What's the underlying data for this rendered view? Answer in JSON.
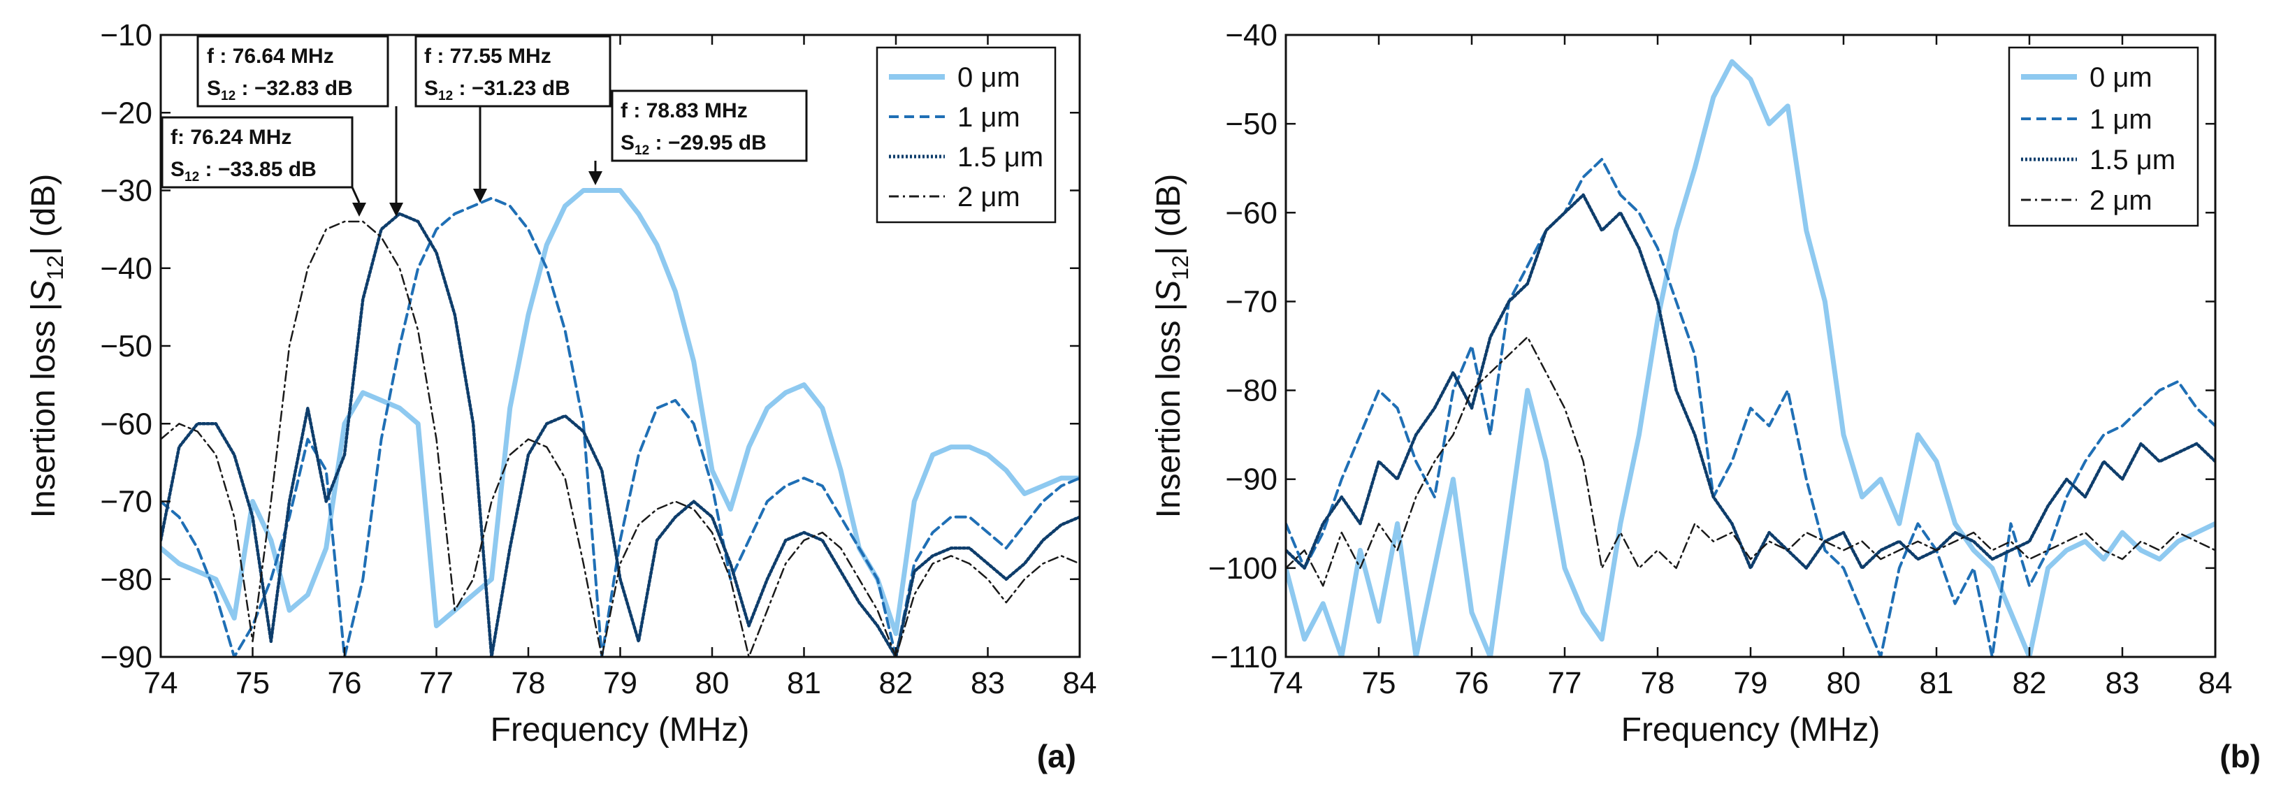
{
  "chart_data": [
    {
      "type": "line",
      "panel_label": "(a)",
      "xlabel": "Frequency (MHz)",
      "ylabel": {
        "prefix": "Insertion loss |",
        "symbol": "S",
        "sub": "12",
        "suffix": "| (dB)"
      },
      "xlim": [
        74,
        84
      ],
      "ylim": [
        -90,
        -10
      ],
      "xticks": [
        74,
        75,
        76,
        77,
        78,
        79,
        80,
        81,
        82,
        83,
        84
      ],
      "xtick_labels": [
        "74",
        "75",
        "76",
        "77",
        "78",
        "79",
        "80",
        "81",
        "82",
        "83",
        "84"
      ],
      "yticks": [
        -90,
        -80,
        -70,
        -60,
        -50,
        -40,
        -30,
        -20,
        -10
      ],
      "ytick_labels": [
        "−90",
        "−80",
        "−70",
        "−60",
        "−50",
        "−40",
        "−30",
        "−20",
        "−10"
      ],
      "legend": [
        "0 μm",
        "1 μm",
        "1.5 μm",
        "2 μm"
      ],
      "series": [
        {
          "name": "0 μm",
          "color": "#8ec9f0",
          "style": "solid-thick",
          "x": [
            74,
            74.2,
            74.4,
            74.6,
            74.8,
            75.0,
            75.2,
            75.4,
            75.6,
            75.8,
            76.0,
            76.2,
            76.4,
            76.6,
            76.8,
            77.0,
            77.2,
            77.4,
            77.6,
            77.8,
            78.0,
            78.2,
            78.4,
            78.6,
            78.8,
            79.0,
            79.2,
            79.4,
            79.6,
            79.8,
            80.0,
            80.2,
            80.4,
            80.6,
            80.8,
            81.0,
            81.2,
            81.4,
            81.6,
            81.8,
            82.0,
            82.2,
            82.4,
            82.6,
            82.8,
            83.0,
            83.2,
            83.4,
            83.6,
            83.8,
            84.0
          ],
          "y": [
            -76,
            -78,
            -79,
            -80,
            -85,
            -70,
            -75,
            -84,
            -82,
            -76,
            -60,
            -56,
            -57,
            -58,
            -60,
            -86,
            -84,
            -82,
            -80,
            -58,
            -46,
            -37,
            -32,
            -30,
            -30,
            -30,
            -33,
            -37,
            -43,
            -52,
            -66,
            -71,
            -63,
            -58,
            -56,
            -55,
            -58,
            -66,
            -76,
            -80,
            -87,
            -70,
            -64,
            -63,
            -63,
            -64,
            -66,
            -69,
            -68,
            -67,
            -67
          ]
        },
        {
          "name": "1 μm",
          "color": "#1f6fb5",
          "style": "dashed",
          "x": [
            74,
            74.2,
            74.4,
            74.6,
            74.8,
            75.0,
            75.2,
            75.4,
            75.6,
            75.8,
            76.0,
            76.2,
            76.4,
            76.6,
            76.8,
            77.0,
            77.2,
            77.4,
            77.6,
            77.8,
            78.0,
            78.2,
            78.4,
            78.6,
            78.8,
            79.0,
            79.2,
            79.4,
            79.6,
            79.8,
            80.0,
            80.2,
            80.4,
            80.6,
            80.8,
            81.0,
            81.2,
            81.4,
            81.6,
            81.8,
            82.0,
            82.2,
            82.4,
            82.6,
            82.8,
            83.0,
            83.2,
            83.4,
            83.6,
            83.8,
            84.0
          ],
          "y": [
            -70,
            -72,
            -76,
            -82,
            -90,
            -86,
            -80,
            -72,
            -62,
            -66,
            -90,
            -80,
            -62,
            -50,
            -40,
            -35,
            -33,
            -32,
            -31,
            -32,
            -35,
            -40,
            -48,
            -60,
            -90,
            -75,
            -64,
            -58,
            -57,
            -60,
            -68,
            -80,
            -75,
            -70,
            -68,
            -67,
            -68,
            -72,
            -76,
            -80,
            -90,
            -78,
            -74,
            -72,
            -72,
            -74,
            -76,
            -73,
            -70,
            -68,
            -67
          ]
        },
        {
          "name": "1.5 μm",
          "color": "#0e3d6b",
          "style": "dotted",
          "x": [
            74,
            74.2,
            74.4,
            74.6,
            74.8,
            75.0,
            75.2,
            75.4,
            75.6,
            75.8,
            76.0,
            76.2,
            76.4,
            76.6,
            76.8,
            77.0,
            77.2,
            77.4,
            77.6,
            77.8,
            78.0,
            78.2,
            78.4,
            78.6,
            78.8,
            79.0,
            79.2,
            79.4,
            79.6,
            79.8,
            80.0,
            80.2,
            80.4,
            80.6,
            80.8,
            81.0,
            81.2,
            81.4,
            81.6,
            81.8,
            82.0,
            82.2,
            82.4,
            82.6,
            82.8,
            83.0,
            83.2,
            83.4,
            83.6,
            83.8,
            84.0
          ],
          "y": [
            -75,
            -63,
            -60,
            -60,
            -64,
            -72,
            -88,
            -70,
            -58,
            -70,
            -64,
            -44,
            -35,
            -33,
            -34,
            -38,
            -46,
            -60,
            -90,
            -76,
            -64,
            -60,
            -59,
            -61,
            -66,
            -80,
            -88,
            -75,
            -72,
            -70,
            -72,
            -78,
            -86,
            -80,
            -75,
            -74,
            -75,
            -79,
            -83,
            -86,
            -90,
            -79,
            -77,
            -76,
            -76,
            -78,
            -80,
            -78,
            -75,
            -73,
            -72
          ]
        },
        {
          "name": "2 μm",
          "color": "#1a1a1a",
          "style": "dashdot",
          "x": [
            74,
            74.2,
            74.4,
            74.6,
            74.8,
            75.0,
            75.2,
            75.4,
            75.6,
            75.8,
            76.0,
            76.2,
            76.4,
            76.6,
            76.8,
            77.0,
            77.2,
            77.4,
            77.6,
            77.8,
            78.0,
            78.2,
            78.4,
            78.6,
            78.8,
            79.0,
            79.2,
            79.4,
            79.6,
            79.8,
            80.0,
            80.2,
            80.4,
            80.6,
            80.8,
            81.0,
            81.2,
            81.4,
            81.6,
            81.8,
            82.0,
            82.2,
            82.4,
            82.6,
            82.8,
            83.0,
            83.2,
            83.4,
            83.6,
            83.8,
            84.0
          ],
          "y": [
            -62,
            -60,
            -61,
            -64,
            -72,
            -88,
            -70,
            -50,
            -40,
            -35,
            -34,
            -34,
            -36,
            -40,
            -48,
            -62,
            -84,
            -80,
            -70,
            -64,
            -62,
            -63,
            -67,
            -78,
            -90,
            -78,
            -73,
            -71,
            -70,
            -71,
            -74,
            -80,
            -90,
            -84,
            -78,
            -75,
            -74,
            -76,
            -80,
            -84,
            -90,
            -82,
            -78,
            -77,
            -78,
            -80,
            -83,
            -80,
            -78,
            -77,
            -78
          ]
        }
      ],
      "annotations": [
        {
          "f_label": "f: 76.24 MHz",
          "s_value": " : −33.85 dB",
          "x": 76.24,
          "y": -33.85
        },
        {
          "f_label": "f : 76.64 MHz",
          "s_value": " : −32.83 dB",
          "x": 76.64,
          "y": -32.83
        },
        {
          "f_label": "f : 77.55 MHz",
          "s_value": " : −31.23 dB",
          "x": 77.55,
          "y": -31.23
        },
        {
          "f_label": "f : 78.83 MHz",
          "s_value": " : −29.95 dB",
          "x": 78.83,
          "y": -29.95
        }
      ]
    },
    {
      "type": "line",
      "panel_label": "(b)",
      "xlabel": "Frequency (MHz)",
      "ylabel": {
        "prefix": "Insertion loss |",
        "symbol": "S",
        "sub": "12",
        "suffix": "| (dB)"
      },
      "xlim": [
        74,
        84
      ],
      "ylim": [
        -110,
        -40
      ],
      "xticks": [
        74,
        75,
        76,
        77,
        78,
        79,
        80,
        81,
        82,
        83,
        84
      ],
      "xtick_labels": [
        "74",
        "75",
        "76",
        "77",
        "78",
        "79",
        "80",
        "81",
        "82",
        "83",
        "84"
      ],
      "yticks": [
        -110,
        -100,
        -90,
        -80,
        -70,
        -60,
        -50,
        -40
      ],
      "ytick_labels": [
        "−110",
        "−100",
        "−90",
        "−80",
        "−70",
        "−60",
        "−50",
        "−40"
      ],
      "legend": [
        "0 μm",
        "1 μm",
        "1.5 μm",
        "2 μm"
      ],
      "series": [
        {
          "name": "0 μm",
          "color": "#8ec9f0",
          "style": "solid-thick",
          "x": [
            74,
            74.2,
            74.4,
            74.6,
            74.8,
            75.0,
            75.2,
            75.4,
            75.6,
            75.8,
            76.0,
            76.2,
            76.4,
            76.6,
            76.8,
            77.0,
            77.2,
            77.4,
            77.6,
            77.8,
            78.0,
            78.2,
            78.4,
            78.6,
            78.8,
            79.0,
            79.2,
            79.4,
            79.6,
            79.8,
            80.0,
            80.2,
            80.4,
            80.6,
            80.8,
            81.0,
            81.2,
            81.4,
            81.6,
            81.8,
            82.0,
            82.2,
            82.4,
            82.6,
            82.8,
            83.0,
            83.2,
            83.4,
            83.6,
            83.8,
            84.0
          ],
          "y": [
            -100,
            -108,
            -104,
            -110,
            -98,
            -106,
            -95,
            -110,
            -100,
            -90,
            -105,
            -110,
            -95,
            -80,
            -88,
            -100,
            -105,
            -108,
            -95,
            -85,
            -72,
            -62,
            -55,
            -47,
            -43,
            -45,
            -50,
            -48,
            -62,
            -70,
            -85,
            -92,
            -90,
            -95,
            -85,
            -88,
            -95,
            -98,
            -100,
            -105,
            -110,
            -100,
            -98,
            -97,
            -99,
            -96,
            -98,
            -99,
            -97,
            -96,
            -95
          ]
        },
        {
          "name": "1 μm",
          "color": "#1f6fb5",
          "style": "dashed",
          "x": [
            74,
            74.2,
            74.4,
            74.6,
            74.8,
            75.0,
            75.2,
            75.4,
            75.6,
            75.8,
            76.0,
            76.2,
            76.4,
            76.6,
            76.8,
            77.0,
            77.2,
            77.4,
            77.6,
            77.8,
            78.0,
            78.2,
            78.4,
            78.6,
            78.8,
            79.0,
            79.2,
            79.4,
            79.6,
            79.8,
            80.0,
            80.2,
            80.4,
            80.6,
            80.8,
            81.0,
            81.2,
            81.4,
            81.6,
            81.8,
            82.0,
            82.2,
            82.4,
            82.6,
            82.8,
            83.0,
            83.2,
            83.4,
            83.6,
            83.8,
            84.0
          ],
          "y": [
            -95,
            -100,
            -96,
            -90,
            -85,
            -80,
            -82,
            -88,
            -92,
            -80,
            -75,
            -85,
            -70,
            -66,
            -62,
            -60,
            -56,
            -54,
            -58,
            -60,
            -64,
            -70,
            -76,
            -92,
            -88,
            -82,
            -84,
            -80,
            -90,
            -98,
            -100,
            -105,
            -110,
            -100,
            -95,
            -98,
            -104,
            -100,
            -110,
            -95,
            -102,
            -98,
            -92,
            -88,
            -85,
            -84,
            -82,
            -80,
            -79,
            -82,
            -84
          ]
        },
        {
          "name": "1.5 μm",
          "color": "#0e3d6b",
          "style": "dotted",
          "x": [
            74,
            74.2,
            74.4,
            74.6,
            74.8,
            75.0,
            75.2,
            75.4,
            75.6,
            75.8,
            76.0,
            76.2,
            76.4,
            76.6,
            76.8,
            77.0,
            77.2,
            77.4,
            77.6,
            77.8,
            78.0,
            78.2,
            78.4,
            78.6,
            78.8,
            79.0,
            79.2,
            79.4,
            79.6,
            79.8,
            80.0,
            80.2,
            80.4,
            80.6,
            80.8,
            81.0,
            81.2,
            81.4,
            81.6,
            81.8,
            82.0,
            82.2,
            82.4,
            82.6,
            82.8,
            83.0,
            83.2,
            83.4,
            83.6,
            83.8,
            84.0
          ],
          "y": [
            -98,
            -100,
            -95,
            -92,
            -95,
            -88,
            -90,
            -85,
            -82,
            -78,
            -82,
            -74,
            -70,
            -68,
            -62,
            -60,
            -58,
            -62,
            -60,
            -64,
            -70,
            -80,
            -85,
            -92,
            -95,
            -100,
            -96,
            -98,
            -100,
            -97,
            -96,
            -100,
            -98,
            -97,
            -99,
            -98,
            -96,
            -97,
            -99,
            -98,
            -97,
            -93,
            -90,
            -92,
            -88,
            -90,
            -86,
            -88,
            -87,
            -86,
            -88
          ]
        },
        {
          "name": "2 μm",
          "color": "#1a1a1a",
          "style": "dashdot",
          "x": [
            74,
            74.2,
            74.4,
            74.6,
            74.8,
            75.0,
            75.2,
            75.4,
            75.6,
            75.8,
            76.0,
            76.2,
            76.4,
            76.6,
            76.8,
            77.0,
            77.2,
            77.4,
            77.6,
            77.8,
            78.0,
            78.2,
            78.4,
            78.6,
            78.8,
            79.0,
            79.2,
            79.4,
            79.6,
            79.8,
            80.0,
            80.2,
            80.4,
            80.6,
            80.8,
            81.0,
            81.2,
            81.4,
            81.6,
            81.8,
            82.0,
            82.2,
            82.4,
            82.6,
            82.8,
            83.0,
            83.2,
            83.4,
            83.6,
            83.8,
            84.0
          ],
          "y": [
            -100,
            -98,
            -102,
            -96,
            -100,
            -95,
            -98,
            -92,
            -88,
            -85,
            -80,
            -78,
            -76,
            -74,
            -78,
            -82,
            -88,
            -100,
            -96,
            -100,
            -98,
            -100,
            -95,
            -97,
            -96,
            -99,
            -97,
            -98,
            -96,
            -97,
            -98,
            -97,
            -99,
            -98,
            -97,
            -98,
            -97,
            -96,
            -98,
            -97,
            -99,
            -98,
            -97,
            -96,
            -98,
            -99,
            -97,
            -98,
            -96,
            -97,
            -98
          ]
        }
      ]
    }
  ]
}
